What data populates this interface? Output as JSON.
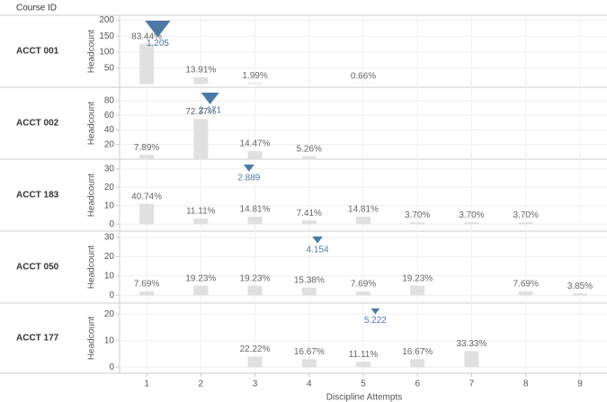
{
  "header": "Course ID",
  "x_axis": {
    "label": "Discipline Attempts",
    "lim": [
      0.5,
      9.5
    ],
    "ticks": [
      1,
      2,
      3,
      4,
      5,
      6,
      7,
      8,
      9
    ]
  },
  "chart_data": [
    {
      "type": "bar",
      "title": "ACCT 001",
      "ylabel": "Headcount",
      "color": "#e0e0e0",
      "marker_color": "#4e79a7",
      "x": [
        1,
        2,
        3,
        4,
        5
      ],
      "values": [
        126,
        21,
        3,
        0,
        1
      ],
      "percent_labels": [
        "83.44%",
        "13.91%",
        "1.99%",
        null,
        "0.66%"
      ],
      "mean": 1.205,
      "ylim": [
        -10,
        210
      ],
      "yticks": [
        50,
        100,
        150,
        200
      ]
    },
    {
      "type": "bar",
      "title": "ACCT 002",
      "ylabel": "Headcount",
      "color": "#e0e0e0",
      "marker_color": "#4e79a7",
      "x": [
        1,
        2,
        3,
        4
      ],
      "values": [
        6,
        55,
        11,
        4
      ],
      "percent_labels": [
        "7.89%",
        "72.37%",
        "14.47%",
        "5.26%"
      ],
      "mean": 2.171,
      "ylim": [
        0,
        96
      ],
      "yticks": [
        20,
        40,
        60,
        80
      ]
    },
    {
      "type": "bar",
      "title": "ACCT 183",
      "ylabel": "Headcount",
      "color": "#e0e0e0",
      "marker_color": "#4e79a7",
      "x": [
        1,
        2,
        3,
        4,
        5,
        6,
        7,
        8
      ],
      "values": [
        11,
        3,
        4,
        2,
        4,
        1,
        1,
        1
      ],
      "percent_labels": [
        "40.74%",
        "11.11%",
        "14.81%",
        "7.41%",
        "14.81%",
        "3.70%",
        "3.70%",
        "3.70%"
      ],
      "mean": 2.889,
      "ylim": [
        -3.8,
        34.3
      ],
      "yticks": [
        0,
        10,
        20,
        30
      ]
    },
    {
      "type": "bar",
      "title": "ACCT 050",
      "ylabel": "Headcount",
      "color": "#e0e0e0",
      "marker_color": "#4e79a7",
      "x": [
        1,
        2,
        3,
        4,
        5,
        6,
        8,
        9
      ],
      "values": [
        2,
        5,
        5,
        4,
        2,
        5,
        2,
        1
      ],
      "percent_labels": [
        "7.69%",
        "19.23%",
        "19.23%",
        "15.38%",
        "7.69%",
        "19.23%",
        "7.69%",
        "3.85%"
      ],
      "mean": 4.154,
      "ylim": [
        -4,
        32.3
      ],
      "yticks": [
        0,
        10,
        20,
        30
      ]
    },
    {
      "type": "bar",
      "title": "ACCT 177",
      "ylabel": "Headcount",
      "color": "#e0e0e0",
      "marker_color": "#4e79a7",
      "x": [
        3,
        4,
        5,
        6,
        7
      ],
      "values": [
        4,
        3,
        2,
        3,
        6
      ],
      "percent_labels": [
        "22.22%",
        "16.67%",
        "11.11%",
        "16.67%",
        "33.33%"
      ],
      "mean": 5.222,
      "ylim": [
        -2.3,
        23.5
      ],
      "yticks": [
        0,
        10,
        20
      ]
    }
  ]
}
